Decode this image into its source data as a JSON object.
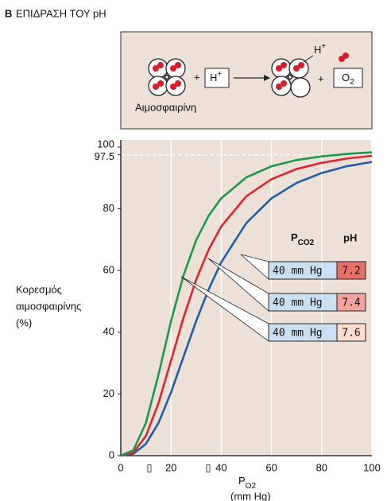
{
  "panel_label": "B",
  "diagram": {
    "plus_1": "+",
    "proton_in": {
      "main": "H",
      "sup": "+"
    },
    "proton_out": {
      "main": "H",
      "sup": "+"
    },
    "plus_2": "+",
    "oxygen": {
      "main": "O",
      "sub": "2"
    },
    "hemoglobin_label": "Αιμοσφαιρίνη"
  },
  "chart_data": {
    "type": "line",
    "title": "ΕΠΙΔΡΑΣΗ ΤΟΥ pH",
    "y_label": [
      "Κορεσμός",
      "αιμοσφαιρίνης",
      "(%)"
    ],
    "x_label": {
      "main": "P",
      "sub": "O2",
      "unit": "(mm Hg)"
    },
    "legend_header": {
      "pco2": {
        "main": "P",
        "sub": "CO2"
      },
      "ph": "pH"
    },
    "x": [
      0,
      5,
      10,
      15,
      20,
      25,
      30,
      35,
      40,
      50,
      60,
      70,
      80,
      90,
      100
    ],
    "series": [
      {
        "name": "7.2",
        "pco2": "40 mm Hg",
        "color": "#1f5fa8",
        "box_color": "#e8706a",
        "values": [
          0,
          0.6,
          3.8,
          10.6,
          20.5,
          32.1,
          43.6,
          53.9,
          62.7,
          75.4,
          83.4,
          88.4,
          91.6,
          93.8,
          95.2
        ]
      },
      {
        "name": "7.4",
        "pco2": "40 mm Hg",
        "color": "#e0242e",
        "box_color": "#f2a49c",
        "values": [
          0,
          1.0,
          6.4,
          17.0,
          30.8,
          44.8,
          57.0,
          66.8,
          74.3,
          84.1,
          89.6,
          92.9,
          94.9,
          96.3,
          97.2
        ]
      },
      {
        "name": "7.6",
        "pco2": "40 mm Hg",
        "color": "#1d9a48",
        "box_color": "#fbdccf",
        "values": [
          0,
          1.8,
          10.6,
          26.2,
          43.6,
          58.5,
          69.8,
          77.8,
          83.4,
          90.2,
          93.8,
          95.8,
          97.0,
          97.8,
          98.3
        ]
      }
    ],
    "xlim": [
      0,
      100
    ],
    "ylim": [
      0,
      100
    ],
    "xticks": [
      0,
      20,
      40,
      60,
      80,
      100
    ],
    "yticks": [
      0,
      20,
      40,
      60,
      80,
      97.5,
      100
    ],
    "x_markers": [
      "▯",
      "▯"
    ],
    "grid": "x",
    "hline": 97.5
  }
}
